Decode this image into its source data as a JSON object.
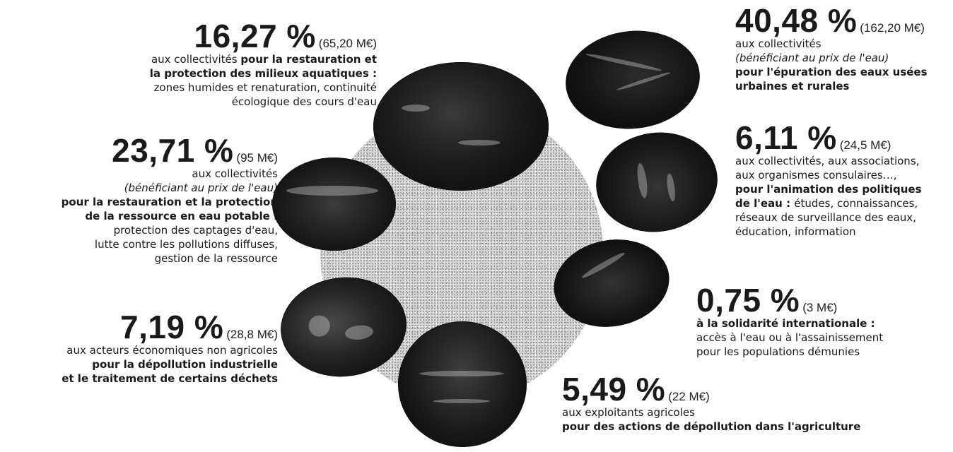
{
  "segments": [
    {
      "percent": "16,27 %",
      "amount": "(65,20 M€)",
      "lines": [
        {
          "text": "aux collectivités ",
          "style": "normal",
          "join_next": "pour la restauration et",
          "join_style": "bold"
        },
        {
          "text": "la protection des milieux aquatiques :",
          "style": "bold"
        },
        {
          "text": "zones humides et renaturation, continuité",
          "style": "normal"
        },
        {
          "text": "écologique des cours d'eau",
          "style": "normal"
        }
      ]
    },
    {
      "percent": "23,71 %",
      "amount": "(95 M€)",
      "lines": [
        {
          "text": "aux collectivités",
          "style": "normal"
        },
        {
          "text": "(bénéficiant au prix de l'eau)",
          "style": "italic"
        },
        {
          "text": "pour la restauration et la protection",
          "style": "bold"
        },
        {
          "text": "de la ressource en eau potable :",
          "style": "bold"
        },
        {
          "text": "protection des captages d'eau,",
          "style": "normal"
        },
        {
          "text": "lutte contre les pollutions diffuses,",
          "style": "normal"
        },
        {
          "text": "gestion de la ressource",
          "style": "normal"
        }
      ]
    },
    {
      "percent": "7,19 %",
      "amount": "(28,8 M€)",
      "lines": [
        {
          "text": "aux acteurs économiques non agricoles",
          "style": "normal"
        },
        {
          "text": "pour la dépollution industrielle",
          "style": "bold"
        },
        {
          "text": "et le traitement de certains déchets",
          "style": "bold"
        }
      ]
    },
    {
      "percent": "40,48 %",
      "amount": "(162,20 M€)",
      "lines": [
        {
          "text": "aux collectivités",
          "style": "normal"
        },
        {
          "text": "(bénéficiant au prix de l'eau)",
          "style": "italic"
        },
        {
          "text": "pour l'épuration des eaux usées",
          "style": "bold"
        },
        {
          "text": "urbaines et rurales",
          "style": "bold"
        }
      ]
    },
    {
      "percent": "6,11 %",
      "amount": "(24,5 M€)",
      "lines": [
        {
          "text": "aux collectivités, aux associations,",
          "style": "normal"
        },
        {
          "text": "aux organismes consulaires…,",
          "style": "normal"
        },
        {
          "text": "pour l'animation des politiques",
          "style": "bold"
        },
        {
          "text": "de l'eau : ",
          "style": "bold",
          "join_next": "études, connaissances,",
          "join_style": "normal"
        },
        {
          "text": "réseaux de surveillance des eaux,",
          "style": "normal"
        },
        {
          "text": "éducation, information",
          "style": "normal"
        }
      ]
    },
    {
      "percent": "0,75 %",
      "amount": "(3 M€)",
      "lines": [
        {
          "text": "à la solidarité internationale :",
          "style": "bold"
        },
        {
          "text": "accès à l'eau ou à l'assainissement",
          "style": "normal"
        },
        {
          "text": "pour les populations démunies",
          "style": "normal"
        }
      ]
    },
    {
      "percent": "5,49 %",
      "amount": "(22 M€)",
      "lines": [
        {
          "text": "aux exploitants agricoles",
          "style": "normal"
        },
        {
          "text": "pour des actions de dépollution dans l'agriculture",
          "style": "bold"
        }
      ]
    }
  ]
}
